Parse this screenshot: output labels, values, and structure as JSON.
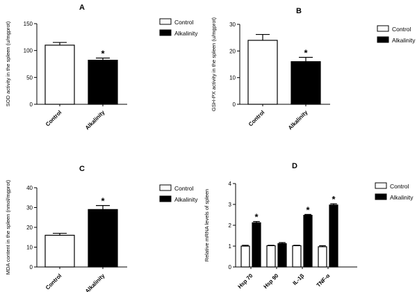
{
  "colors": {
    "control": "#ffffff",
    "alkalinity": "#000000",
    "axis": "#000000"
  },
  "chart_data": [
    {
      "panel": "A",
      "type": "bar",
      "categories": [
        "Control",
        "Alkalinity"
      ],
      "values": [
        110,
        82
      ],
      "errors": [
        5,
        4
      ],
      "significant": [
        false,
        true
      ],
      "ylabel": "SOD activity in the spleen (u/mgprot)",
      "ylim": [
        0,
        150
      ],
      "yticks": [
        "0",
        "50",
        "100",
        "150"
      ],
      "legend": [
        "Control",
        "Alkalinity"
      ],
      "legend_position": "top-right"
    },
    {
      "panel": "B",
      "type": "bar",
      "categories": [
        "Control",
        "Alkalinity"
      ],
      "values": [
        24,
        16
      ],
      "errors": [
        2.2,
        1.6
      ],
      "significant": [
        false,
        true
      ],
      "ylabel": "GSH-PX activity in the spleen (u/mgprot)",
      "ylim": [
        0,
        30
      ],
      "yticks": [
        "0",
        "10",
        "20",
        "30"
      ],
      "legend": [
        "Control",
        "Alkalinity"
      ],
      "legend_position": "top-right"
    },
    {
      "panel": "C",
      "type": "bar",
      "categories": [
        "Control",
        "Alkalinity"
      ],
      "values": [
        16,
        29
      ],
      "errors": [
        1,
        2
      ],
      "significant": [
        false,
        true
      ],
      "ylabel": "MDA content in the spleen (nmol/mgprot)",
      "ylim": [
        0,
        40
      ],
      "yticks": [
        "0",
        "10",
        "20",
        "30",
        "40"
      ],
      "legend": [
        "Control",
        "Alkalinity"
      ],
      "legend_position": "top-right"
    },
    {
      "panel": "D",
      "type": "bar",
      "categories": [
        "Hsp 70",
        "Hsp 90",
        "IL-1β",
        "TNF-α"
      ],
      "series": [
        {
          "name": "Control",
          "values": [
            1.0,
            1.02,
            1.02,
            0.97
          ],
          "errors": [
            0.04,
            0.02,
            0.02,
            0.05
          ],
          "significant": [
            false,
            false,
            false,
            false
          ]
        },
        {
          "name": "Alkalinity",
          "values": [
            2.12,
            1.12,
            2.48,
            2.97
          ],
          "errors": [
            0.06,
            0.05,
            0.04,
            0.06
          ],
          "significant": [
            true,
            false,
            true,
            true
          ]
        }
      ],
      "ylabel": "Relative mRNA levels of spleen",
      "ylim": [
        0,
        4
      ],
      "yticks": [
        "0",
        "1",
        "2",
        "3",
        "4"
      ],
      "legend": [
        "Control",
        "Alkalinity"
      ],
      "legend_position": "top-right"
    }
  ]
}
